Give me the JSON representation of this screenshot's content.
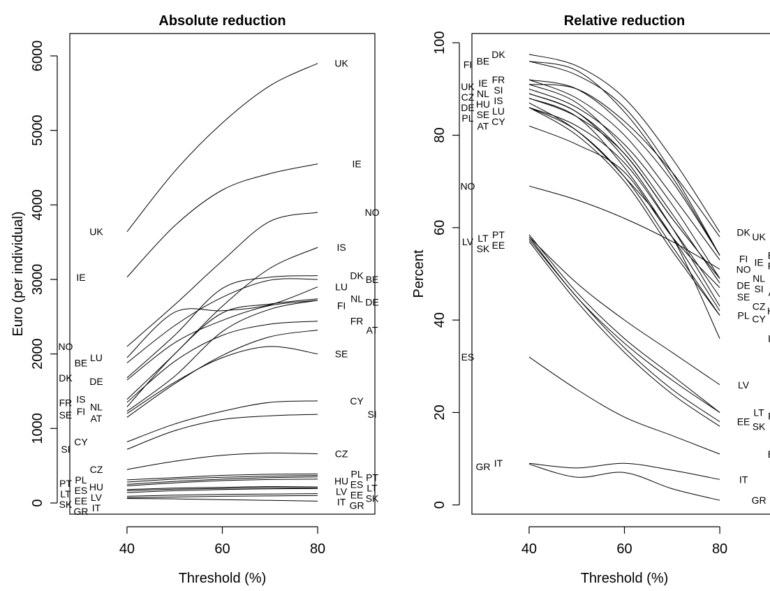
{
  "chart_data": [
    {
      "type": "line",
      "title": "Absolute reduction",
      "xlabel": "Threshold (%)",
      "ylabel": "Euro (per individual)",
      "xlim": [
        28,
        92
      ],
      "ylim": [
        -150,
        6300
      ],
      "x_ticks": [
        40,
        60,
        80
      ],
      "y_ticks": [
        0,
        1000,
        2000,
        3000,
        4000,
        5000,
        6000
      ],
      "grid": false,
      "legend": "none",
      "x": [
        40,
        50,
        60,
        70,
        80
      ],
      "series": [
        {
          "name": "UK",
          "values": [
            3640,
            4450,
            5100,
            5600,
            5900
          ]
        },
        {
          "name": "IE",
          "values": [
            3030,
            3720,
            4200,
            4420,
            4550
          ]
        },
        {
          "name": "NO",
          "values": [
            2100,
            2660,
            3250,
            3780,
            3900
          ]
        },
        {
          "name": "IS",
          "values": [
            1390,
            2000,
            2640,
            3150,
            3430
          ]
        },
        {
          "name": "DK",
          "values": [
            1680,
            2250,
            2880,
            3030,
            3050
          ]
        },
        {
          "name": "BE",
          "values": [
            1880,
            2380,
            2760,
            2990,
            3000
          ]
        },
        {
          "name": "LU",
          "values": [
            1950,
            2560,
            2580,
            2660,
            2900
          ]
        },
        {
          "name": "NL",
          "values": [
            1290,
            2000,
            2550,
            2670,
            2740
          ]
        },
        {
          "name": "DE",
          "values": [
            1650,
            2150,
            2450,
            2650,
            2720
          ]
        },
        {
          "name": "FI",
          "values": [
            1230,
            1700,
            2300,
            2600,
            2720
          ]
        },
        {
          "name": "FR",
          "values": [
            1350,
            1900,
            2250,
            2400,
            2440
          ]
        },
        {
          "name": "AT",
          "values": [
            1150,
            1600,
            1980,
            2230,
            2320
          ]
        },
        {
          "name": "SE",
          "values": [
            1200,
            1620,
            1950,
            2100,
            2000
          ]
        },
        {
          "name": "CY",
          "values": [
            820,
            1060,
            1230,
            1350,
            1370
          ]
        },
        {
          "name": "SI",
          "values": [
            720,
            970,
            1120,
            1170,
            1190
          ]
        },
        {
          "name": "CZ",
          "values": [
            450,
            560,
            640,
            670,
            660
          ]
        },
        {
          "name": "PL",
          "values": [
            310,
            340,
            370,
            385,
            390
          ]
        },
        {
          "name": "PT",
          "values": [
            280,
            320,
            345,
            360,
            370
          ]
        },
        {
          "name": "HU",
          "values": [
            250,
            290,
            320,
            340,
            350
          ]
        },
        {
          "name": "ES",
          "values": [
            230,
            270,
            300,
            315,
            320
          ]
        },
        {
          "name": "LT",
          "values": [
            180,
            200,
            210,
            220,
            215
          ]
        },
        {
          "name": "LV",
          "values": [
            165,
            185,
            195,
            205,
            200
          ]
        },
        {
          "name": "EE",
          "values": [
            140,
            165,
            180,
            190,
            195
          ]
        },
        {
          "name": "SK",
          "values": [
            90,
            105,
            115,
            120,
            125
          ]
        },
        {
          "name": "IT",
          "values": [
            70,
            80,
            90,
            95,
            100
          ]
        },
        {
          "name": "GR",
          "values": [
            60,
            55,
            45,
            35,
            25
          ]
        }
      ]
    },
    {
      "type": "line",
      "title": "Relative reduction",
      "xlabel": "Threshold (%)",
      "ylabel": "Percent",
      "xlim": [
        28,
        92
      ],
      "ylim": [
        -2,
        102
      ],
      "x_ticks": [
        40,
        60,
        80
      ],
      "y_ticks": [
        0,
        20,
        40,
        60,
        80,
        100
      ],
      "grid": false,
      "legend": "none",
      "x": [
        40,
        50,
        60,
        70,
        80
      ],
      "series": [
        {
          "name": "DK",
          "values": [
            97.5,
            95,
            88,
            75,
            59
          ]
        },
        {
          "name": "BE",
          "values": [
            96,
            94,
            85,
            71,
            54
          ]
        },
        {
          "name": "FI",
          "values": [
            96,
            93,
            86,
            72,
            54
          ]
        },
        {
          "name": "FR",
          "values": [
            92,
            88,
            80,
            67,
            53
          ]
        },
        {
          "name": "UK",
          "values": [
            91,
            90,
            83,
            72,
            58
          ]
        },
        {
          "name": "IE",
          "values": [
            92,
            90,
            82,
            70,
            54
          ]
        },
        {
          "name": "SI",
          "values": [
            91,
            87,
            77,
            63,
            48
          ]
        },
        {
          "name": "NL",
          "values": [
            90,
            86,
            78,
            65,
            49
          ]
        },
        {
          "name": "CZ",
          "values": [
            89,
            85,
            75,
            60,
            43
          ]
        },
        {
          "name": "IS",
          "values": [
            89,
            85,
            76,
            62,
            49
          ]
        },
        {
          "name": "HU",
          "values": [
            88,
            84,
            73,
            58,
            42
          ]
        },
        {
          "name": "DE",
          "values": [
            88,
            84,
            76,
            62,
            49
          ]
        },
        {
          "name": "LU",
          "values": [
            87,
            81,
            71,
            58,
            36
          ]
        },
        {
          "name": "SE",
          "values": [
            86,
            82,
            74,
            60,
            45
          ]
        },
        {
          "name": "PL",
          "values": [
            86,
            81,
            71,
            56,
            41
          ]
        },
        {
          "name": "CY",
          "values": [
            86,
            80,
            70,
            55,
            41
          ]
        },
        {
          "name": "AT",
          "values": [
            82,
            78,
            72,
            58,
            47
          ]
        },
        {
          "name": "NO",
          "values": [
            69,
            66,
            62,
            57,
            51
          ]
        },
        {
          "name": "LT",
          "values": [
            58,
            45,
            35,
            27,
            20
          ]
        },
        {
          "name": "PT",
          "values": [
            58.5,
            46,
            36,
            28,
            20
          ]
        },
        {
          "name": "LV",
          "values": [
            58,
            48,
            40,
            33,
            26
          ]
        },
        {
          "name": "EE",
          "values": [
            57.5,
            45,
            34,
            25,
            18
          ]
        },
        {
          "name": "SK",
          "values": [
            57,
            44,
            33,
            24,
            17
          ]
        },
        {
          "name": "ES",
          "values": [
            32,
            25,
            19,
            15,
            11
          ]
        },
        {
          "name": "IT",
          "values": [
            9,
            8,
            9,
            7.5,
            5.5
          ]
        },
        {
          "name": "GR",
          "values": [
            8.8,
            6,
            7,
            3.5,
            1
          ]
        }
      ]
    }
  ]
}
